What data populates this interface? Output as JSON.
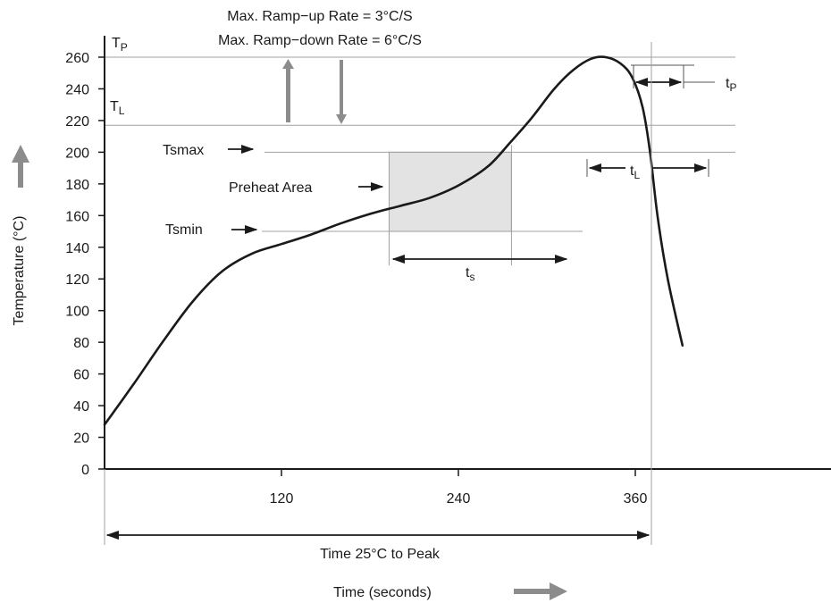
{
  "chart_data": {
    "type": "line",
    "title_lines": [
      "Max. Ramp−up Rate = 3°C/S",
      "Max. Ramp−down Rate = 6°C/S"
    ],
    "xlabel": "Time (seconds)",
    "ylabel": "Temperature (°C)",
    "x_ticks": [
      120,
      240,
      360
    ],
    "y_ticks": [
      0,
      20,
      40,
      60,
      80,
      100,
      120,
      140,
      160,
      180,
      200,
      220,
      240,
      260
    ],
    "xlim": [
      0,
      390
    ],
    "ylim": [
      0,
      260
    ],
    "grid": false,
    "levels": {
      "TP": {
        "label_main": "T",
        "label_sub": "P",
        "value": 260
      },
      "TL": {
        "label_main": "T",
        "label_sub": "L",
        "value": 217
      },
      "Tsmax": {
        "label": "Tsmax",
        "value": 200
      },
      "Tsmin": {
        "label": "Tsmin",
        "value": 150
      }
    },
    "preheat_area": {
      "label": "Preheat Area",
      "x_start": 193,
      "x_end": 276,
      "y_min": 150,
      "y_max": 200,
      "color": "#e3e3e3"
    },
    "intervals": {
      "ts": {
        "label_main": "t",
        "label_sub": "s"
      },
      "tL": {
        "label_main": "t",
        "label_sub": "L"
      },
      "tP": {
        "label_main": "t",
        "label_sub": "P"
      },
      "time_to_peak": {
        "label": "Time 25°C to Peak"
      }
    },
    "series": [
      {
        "points": [
          [
            0,
            28
          ],
          [
            20,
            54
          ],
          [
            40,
            81
          ],
          [
            60,
            106
          ],
          [
            80,
            125
          ],
          [
            100,
            136
          ],
          [
            120,
            142
          ],
          [
            140,
            148
          ],
          [
            160,
            155
          ],
          [
            180,
            161
          ],
          [
            200,
            166
          ],
          [
            220,
            171
          ],
          [
            240,
            179
          ],
          [
            260,
            191
          ],
          [
            275,
            206
          ],
          [
            290,
            222
          ],
          [
            305,
            240
          ],
          [
            318,
            252
          ],
          [
            330,
            259
          ],
          [
            340,
            260
          ],
          [
            350,
            256
          ],
          [
            358,
            247
          ],
          [
            365,
            228
          ],
          [
            370,
            200
          ],
          [
            375,
            160
          ],
          [
            382,
            120
          ],
          [
            392,
            78
          ]
        ]
      }
    ],
    "colors": {
      "curve": "#1a1a1a",
      "arrow_gray": "#8c8c8c",
      "reference_line": "#a0a0a0"
    }
  }
}
